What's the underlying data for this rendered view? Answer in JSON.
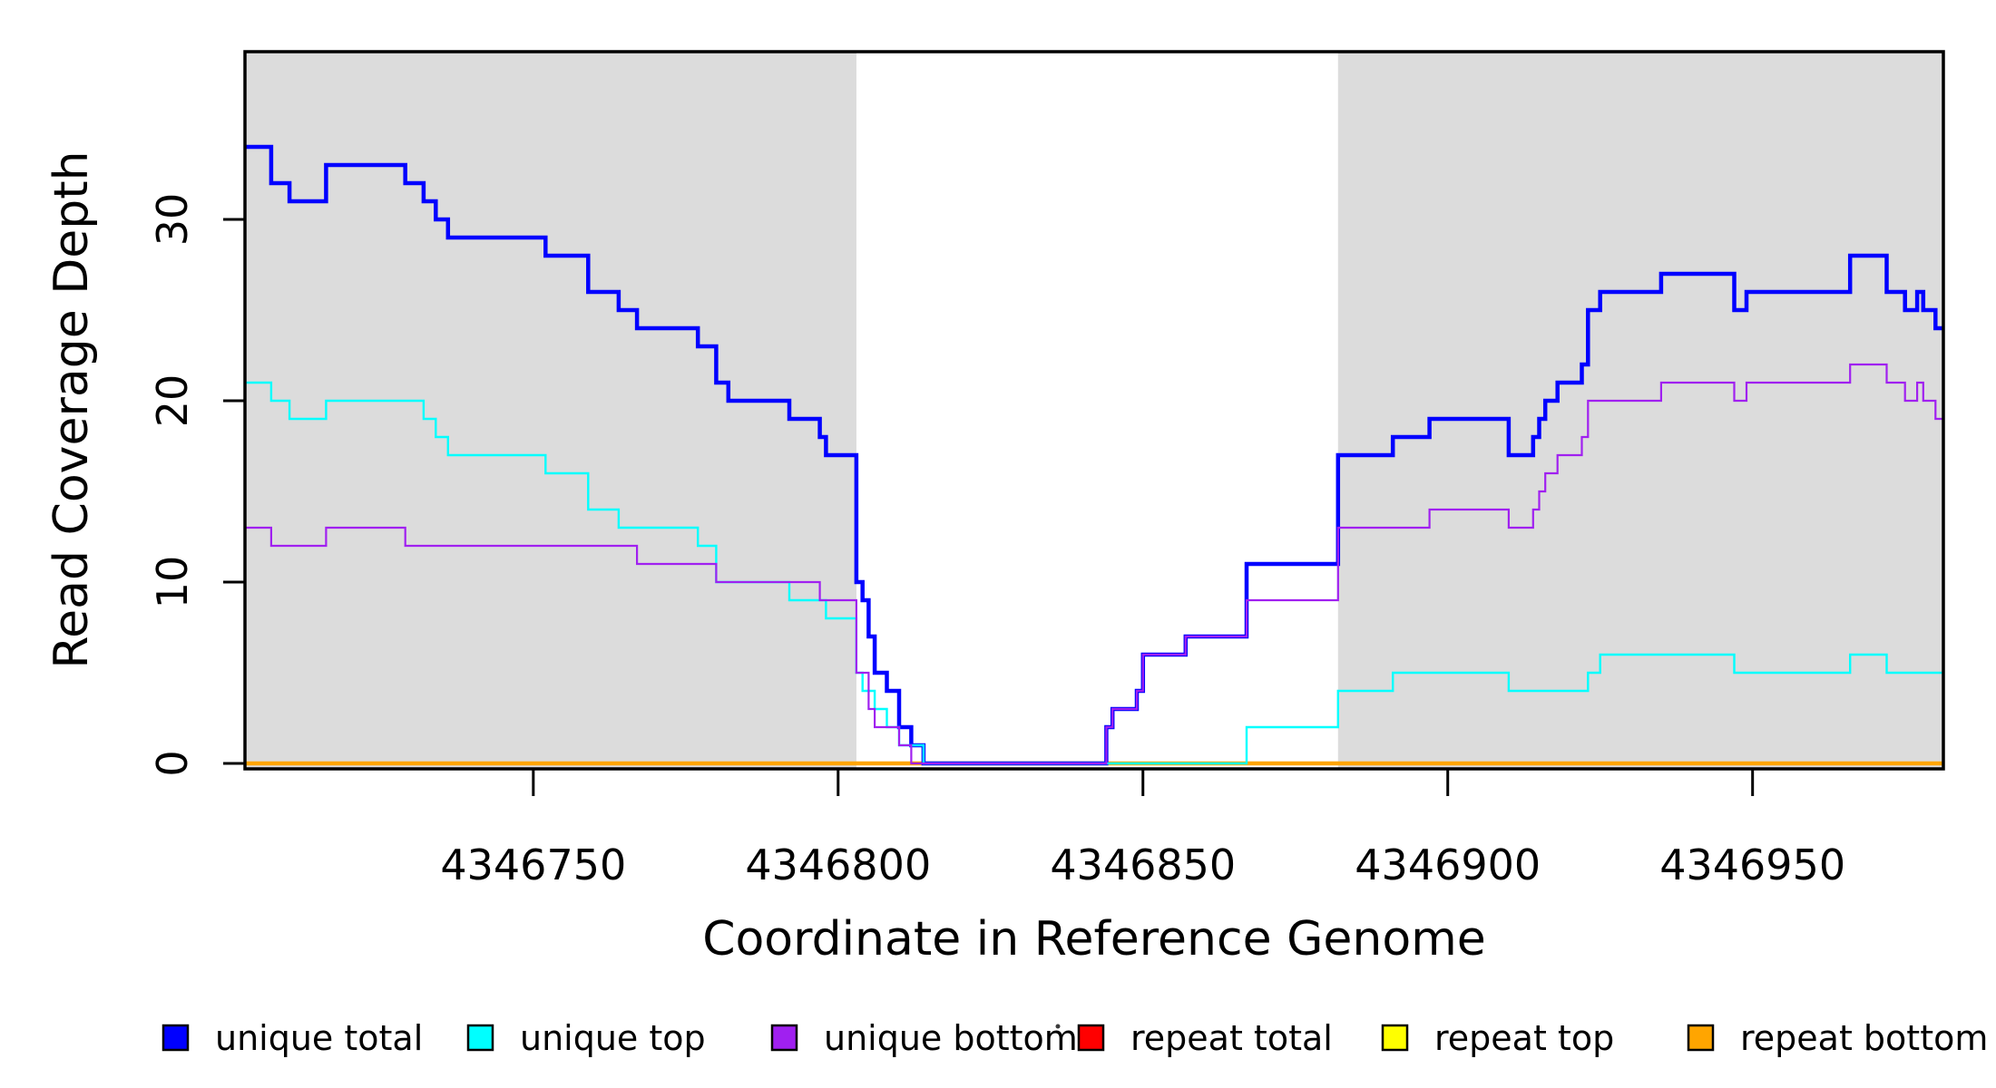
{
  "figure": {
    "background": "#ffffff",
    "text_color": "#000000"
  },
  "chart_data": {
    "type": "line",
    "subtype": "step",
    "title": "",
    "xlabel": "Coordinate in Reference Genome",
    "ylabel": "Read Coverage Depth",
    "xlim": [
      4346702.7,
      4346981.3
    ],
    "ylim": [
      -0.3,
      39.25
    ],
    "x_ticks": [
      4346750,
      4346800,
      4346850,
      4346900,
      4346950
    ],
    "y_ticks": [
      0,
      10,
      20,
      30
    ],
    "grid": false,
    "axis_color": "#000000",
    "plot_background": "#ffffff",
    "shaded_regions": [
      {
        "name": "shaded-region-left",
        "x0": 4346702.7,
        "x1": 4346803.0,
        "color": "#DCDCDC"
      },
      {
        "name": "shaded-region-right",
        "x0": 4346882.0,
        "x1": 4346981.3,
        "color": "#DCDCDC"
      }
    ],
    "series": [
      {
        "name": "repeat total",
        "color": "#FF0000",
        "line_width": 2.5,
        "runs": [
          [
            4346703,
            0
          ]
        ]
      },
      {
        "name": "repeat top",
        "color": "#FFFF00",
        "line_width": 2.5,
        "runs": [
          [
            4346703,
            0
          ]
        ]
      },
      {
        "name": "repeat bottom",
        "color": "#FFA500",
        "line_width": 4.5,
        "runs": [
          [
            4346703,
            0
          ]
        ]
      },
      {
        "name": "unique total",
        "color": "#0000FF",
        "line_width": 4.5,
        "runs": [
          [
            4346703,
            34
          ],
          [
            4346707,
            32
          ],
          [
            4346710,
            31
          ],
          [
            4346716,
            33
          ],
          [
            4346729,
            32
          ],
          [
            4346732,
            31
          ],
          [
            4346734,
            30
          ],
          [
            4346736,
            29
          ],
          [
            4346752,
            28
          ],
          [
            4346759,
            26
          ],
          [
            4346764,
            25
          ],
          [
            4346767,
            24
          ],
          [
            4346777,
            23
          ],
          [
            4346780,
            21
          ],
          [
            4346782,
            20
          ],
          [
            4346792,
            19
          ],
          [
            4346797,
            18
          ],
          [
            4346798,
            17
          ],
          [
            4346803,
            10
          ],
          [
            4346804,
            9
          ],
          [
            4346805,
            7
          ],
          [
            4346806,
            5
          ],
          [
            4346808,
            4
          ],
          [
            4346810,
            2
          ],
          [
            4346812,
            1
          ],
          [
            4346814,
            0
          ],
          [
            4346844,
            2
          ],
          [
            4346845,
            3
          ],
          [
            4346849,
            4
          ],
          [
            4346850,
            6
          ],
          [
            4346857,
            7
          ],
          [
            4346867,
            11
          ],
          [
            4346882,
            17
          ],
          [
            4346891,
            18
          ],
          [
            4346897,
            19
          ],
          [
            4346910,
            17
          ],
          [
            4346914,
            18
          ],
          [
            4346915,
            19
          ],
          [
            4346916,
            20
          ],
          [
            4346918,
            21
          ],
          [
            4346922,
            22
          ],
          [
            4346923,
            25
          ],
          [
            4346925,
            26
          ],
          [
            4346935,
            27
          ],
          [
            4346947,
            25
          ],
          [
            4346949,
            26
          ],
          [
            4346966,
            28
          ],
          [
            4346972,
            26
          ],
          [
            4346975,
            25
          ],
          [
            4346977,
            26
          ],
          [
            4346978,
            25
          ],
          [
            4346980,
            24
          ]
        ]
      },
      {
        "name": "unique top",
        "color": "#00FFFF",
        "line_width": 2.4,
        "runs": [
          [
            4346703,
            21
          ],
          [
            4346707,
            20
          ],
          [
            4346710,
            19
          ],
          [
            4346716,
            20
          ],
          [
            4346732,
            19
          ],
          [
            4346734,
            18
          ],
          [
            4346736,
            17
          ],
          [
            4346752,
            16
          ],
          [
            4346759,
            14
          ],
          [
            4346764,
            13
          ],
          [
            4346777,
            12
          ],
          [
            4346780,
            10
          ],
          [
            4346792,
            9
          ],
          [
            4346798,
            8
          ],
          [
            4346803,
            5
          ],
          [
            4346804,
            4
          ],
          [
            4346806,
            3
          ],
          [
            4346808,
            2
          ],
          [
            4346810,
            1
          ],
          [
            4346814,
            0
          ],
          [
            4346867,
            2
          ],
          [
            4346882,
            4
          ],
          [
            4346891,
            5
          ],
          [
            4346910,
            4
          ],
          [
            4346923,
            5
          ],
          [
            4346925,
            6
          ],
          [
            4346947,
            5
          ],
          [
            4346966,
            6
          ],
          [
            4346972,
            5
          ]
        ]
      },
      {
        "name": "unique bottom",
        "color": "#A020F0",
        "line_width": 2.2,
        "runs": [
          [
            4346703,
            13
          ],
          [
            4346707,
            12
          ],
          [
            4346716,
            13
          ],
          [
            4346729,
            12
          ],
          [
            4346767,
            11
          ],
          [
            4346780,
            10
          ],
          [
            4346797,
            9
          ],
          [
            4346803,
            5
          ],
          [
            4346805,
            3
          ],
          [
            4346806,
            2
          ],
          [
            4346810,
            1
          ],
          [
            4346812,
            0
          ],
          [
            4346844,
            2
          ],
          [
            4346845,
            3
          ],
          [
            4346849,
            4
          ],
          [
            4346850,
            6
          ],
          [
            4346857,
            7
          ],
          [
            4346867,
            9
          ],
          [
            4346882,
            13
          ],
          [
            4346897,
            14
          ],
          [
            4346910,
            13
          ],
          [
            4346914,
            14
          ],
          [
            4346915,
            15
          ],
          [
            4346916,
            16
          ],
          [
            4346918,
            17
          ],
          [
            4346922,
            18
          ],
          [
            4346923,
            20
          ],
          [
            4346935,
            21
          ],
          [
            4346947,
            20
          ],
          [
            4346949,
            21
          ],
          [
            4346966,
            22
          ],
          [
            4346972,
            21
          ],
          [
            4346975,
            20
          ],
          [
            4346977,
            21
          ],
          [
            4346978,
            20
          ],
          [
            4346980,
            19
          ]
        ]
      }
    ],
    "legend": {
      "position": "bottom",
      "items": [
        {
          "label": "unique total",
          "color": "#0000FF"
        },
        {
          "label": "unique top",
          "color": "#00FFFF"
        },
        {
          "label": "unique bottom",
          "color": "#A020F0"
        },
        {
          "label": "repeat total",
          "color": "#FF0000"
        },
        {
          "label": "repeat top",
          "color": "#FFFF00"
        },
        {
          "label": "repeat bottom",
          "color": "#FFA500"
        }
      ]
    },
    "artifacts": [
      {
        "name": "stray-dot",
        "x": 1166,
        "y": 1132,
        "color": "#3a3a3a",
        "r": 2.5
      }
    ]
  }
}
